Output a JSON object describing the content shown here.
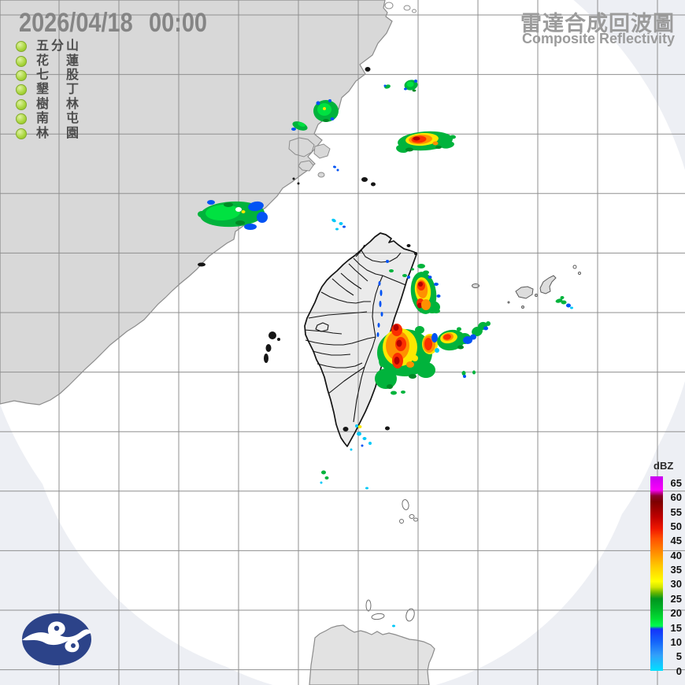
{
  "header": {
    "date": "2026/04/18",
    "time": "00:00",
    "title_zh": "雷達合成回波圖",
    "title_en": "Composite Reflectivity"
  },
  "stations": [
    {
      "name": "五分山",
      "chars": [
        "五",
        "分",
        "山"
      ]
    },
    {
      "name": "花蓮",
      "chars": [
        "花",
        "",
        "蓮"
      ]
    },
    {
      "name": "七股",
      "chars": [
        "七",
        "",
        "股"
      ]
    },
    {
      "name": "墾丁",
      "chars": [
        "墾",
        "",
        "丁"
      ]
    },
    {
      "name": "樹林",
      "chars": [
        "樹",
        "",
        "林"
      ]
    },
    {
      "name": "南屯",
      "chars": [
        "南",
        "",
        "屯"
      ]
    },
    {
      "name": "林園",
      "chars": [
        "林",
        "",
        "園"
      ]
    }
  ],
  "station_dot_color": "#a6d438",
  "colorbar": {
    "label": "dBZ",
    "ticks": [
      65,
      60,
      55,
      50,
      45,
      40,
      35,
      30,
      25,
      20,
      15,
      10,
      5,
      0
    ],
    "gradient": [
      "#c800f0 0%",
      "#fa00fa 7%",
      "#8c0030 10%",
      "#7d0000 13%",
      "#c00000 21%",
      "#f01800 27%",
      "#ff5000 32%",
      "#ff8c00 39%",
      "#ffc800 46%",
      "#ffff00 54%",
      "#d2e600 57%",
      "#64b400 60%",
      "#00961e 63%",
      "#00b428 68%",
      "#00dc32 73%",
      "#00fa50 77%",
      "#1432fa 78.5%",
      "#1464fa 85%",
      "#32a0fa 92%",
      "#00e1ff 100%"
    ]
  },
  "map": {
    "background_out_of_range": "#edeff4",
    "background_in_range": "#ffffff",
    "mainland_fill": "#d8d8d8",
    "mainland_stroke": "#8c8c8c",
    "taiwan_fill": "#ebebeb",
    "taiwan_stroke": "#141414",
    "grid_color": "#8f8f8f",
    "logo_color": "#2c4389"
  },
  "echoes": {
    "palette": {
      "G": "#01b33c",
      "BG": "#00e141",
      "DG": "#008a26",
      "Y": "#fde800",
      "O": "#ff9000",
      "R": "#fb2e00",
      "DR": "#b40000",
      "B": "#0253f4",
      "C": "#02c8f8",
      "W": "#ffffff"
    },
    "blobs": [
      [
        492,
        110,
        4,
        2.5,
        -15,
        "G"
      ],
      [
        489,
        109,
        1.5,
        1.5,
        0,
        "B"
      ],
      [
        522,
        108,
        8.5,
        6.5,
        -10,
        "G"
      ],
      [
        521,
        107,
        4.5,
        3.5,
        0,
        "BG"
      ],
      [
        528,
        103,
        2,
        2,
        0,
        "B"
      ],
      [
        515,
        113,
        2,
        1.5,
        0,
        "B"
      ],
      [
        526,
        115,
        2.5,
        1.5,
        0,
        "DG"
      ],
      [
        540,
        179,
        35,
        12,
        -4,
        "G"
      ],
      [
        511,
        189,
        8,
        5,
        10,
        "G"
      ],
      [
        568,
        184,
        9,
        4.5,
        -8,
        "G"
      ],
      [
        575,
        174,
        4,
        2.5,
        0,
        "G"
      ],
      [
        536,
        177,
        21,
        8,
        -4,
        "Y"
      ],
      [
        534,
        177,
        15,
        6,
        -4,
        "O"
      ],
      [
        532,
        177,
        9.5,
        4.5,
        -4,
        "R"
      ],
      [
        529,
        176,
        4.5,
        2.5,
        0,
        "DR"
      ],
      [
        553,
        182,
        3.5,
        2.5,
        0,
        "O"
      ],
      [
        557,
        187,
        4,
        2,
        0,
        "DG"
      ],
      [
        520,
        190,
        5,
        2.5,
        0,
        "DG"
      ],
      [
        414,
        141,
        16,
        14,
        0,
        "G"
      ],
      [
        412,
        139,
        9,
        8,
        0,
        "BG"
      ],
      [
        404,
        131,
        2.5,
        2.5,
        0,
        "B"
      ],
      [
        422,
        151,
        2.5,
        2,
        0,
        "B"
      ],
      [
        419,
        128,
        2,
        2,
        0,
        "B"
      ],
      [
        414,
        153,
        4,
        2,
        0,
        "DG"
      ],
      [
        412,
        138,
        2,
        2,
        0,
        "Y"
      ],
      [
        381,
        160,
        10,
        5,
        20,
        "G"
      ],
      [
        373,
        164,
        3,
        2,
        0,
        "B"
      ],
      [
        383,
        158,
        5,
        2.5,
        20,
        "BG"
      ],
      [
        295,
        272,
        41,
        16,
        -3,
        "G"
      ],
      [
        283,
        270,
        22,
        10,
        -3,
        "BG"
      ],
      [
        256,
        272,
        5,
        4,
        0,
        "G"
      ],
      [
        325,
        262,
        10,
        6,
        -10,
        "B"
      ],
      [
        333,
        276,
        7,
        7,
        0,
        "B"
      ],
      [
        318,
        288,
        8,
        4,
        0,
        "B"
      ],
      [
        268,
        257,
        5,
        3,
        0,
        "B"
      ],
      [
        305,
        283,
        6,
        3,
        0,
        "DG"
      ],
      [
        290,
        260,
        6,
        3,
        0,
        "DG"
      ],
      [
        303,
        266,
        4,
        3,
        0,
        "W"
      ],
      [
        309,
        269,
        2.5,
        2,
        0,
        "Y"
      ],
      [
        424,
        280,
        3,
        2,
        30,
        "C"
      ],
      [
        433,
        284,
        2.5,
        2,
        0,
        "C"
      ],
      [
        428,
        291,
        2,
        1.5,
        0,
        "C"
      ],
      [
        437,
        288,
        2,
        1.5,
        0,
        "B"
      ],
      [
        425,
        212,
        2,
        1.5,
        20,
        "B"
      ],
      [
        429,
        216,
        1.5,
        1.5,
        0,
        "B"
      ],
      [
        538,
        372,
        16,
        27,
        -8,
        "G"
      ],
      [
        549,
        390,
        10,
        8,
        0,
        "G"
      ],
      [
        537,
        369,
        10,
        17,
        -8,
        "Y"
      ],
      [
        536,
        367,
        7,
        12,
        -8,
        "O"
      ],
      [
        535,
        363,
        5,
        6,
        0,
        "R"
      ],
      [
        534,
        361,
        3,
        3,
        0,
        "DR"
      ],
      [
        534,
        385,
        5,
        6,
        0,
        "R"
      ],
      [
        533,
        388,
        3,
        3.5,
        0,
        "DR"
      ],
      [
        541,
        387,
        6,
        7,
        0,
        "O"
      ],
      [
        535,
        338,
        5,
        3,
        0,
        "G"
      ],
      [
        541,
        346,
        4,
        2.5,
        0,
        "G"
      ],
      [
        546,
        352,
        2.5,
        2,
        0,
        "B"
      ],
      [
        554,
        361,
        3,
        2,
        0,
        "B"
      ],
      [
        557,
        376,
        2.5,
        2,
        0,
        "B"
      ],
      [
        554,
        395,
        5,
        3,
        0,
        "G"
      ],
      [
        519,
        352,
        2,
        2,
        0,
        "B"
      ],
      [
        514,
        350,
        3,
        2,
        0,
        "G"
      ],
      [
        524,
        342,
        2,
        1.5,
        0,
        "G"
      ],
      [
        482,
        360,
        1.5,
        3,
        0,
        "B"
      ],
      [
        484,
        372,
        1.5,
        4,
        0,
        "B"
      ],
      [
        483,
        386,
        1.5,
        4,
        0,
        "B"
      ],
      [
        485,
        399,
        1.5,
        3,
        0,
        "B"
      ],
      [
        497,
        344,
        3,
        2,
        0,
        "G"
      ],
      [
        492,
        332,
        2,
        2,
        0,
        "B"
      ],
      [
        481,
        413,
        1.5,
        3,
        0,
        "B"
      ],
      [
        480,
        425,
        1.5,
        3,
        0,
        "B"
      ],
      [
        514,
        448,
        35,
        30,
        0,
        "G"
      ],
      [
        490,
        481,
        14,
        13,
        0,
        "G"
      ],
      [
        541,
        470,
        12,
        10,
        0,
        "G"
      ],
      [
        485,
        458,
        4,
        8,
        0,
        "G"
      ],
      [
        533,
        419,
        6,
        5,
        0,
        "G"
      ],
      [
        508,
        441,
        22,
        24,
        0,
        "Y"
      ],
      [
        546,
        437,
        10,
        13,
        0,
        "Y"
      ],
      [
        527,
        455,
        4,
        4,
        0,
        "Y"
      ],
      [
        505,
        439,
        15,
        19,
        0,
        "O"
      ],
      [
        545,
        437,
        8,
        11,
        0,
        "O"
      ],
      [
        521,
        463,
        5,
        4,
        0,
        "O"
      ],
      [
        504,
        419,
        7,
        8,
        0,
        "R"
      ],
      [
        509,
        437,
        7,
        9,
        0,
        "R"
      ],
      [
        505,
        458,
        7,
        10,
        0,
        "R"
      ],
      [
        544,
        437,
        5,
        8,
        0,
        "R"
      ],
      [
        503,
        416,
        3.5,
        4,
        0,
        "DR"
      ],
      [
        507,
        436,
        3.5,
        4.5,
        0,
        "DR"
      ],
      [
        504,
        458,
        3.5,
        5,
        0,
        "DR"
      ],
      [
        552,
        429,
        4,
        6,
        0,
        "B"
      ],
      [
        555,
        445,
        3,
        3,
        0,
        "C"
      ],
      [
        524,
        478,
        5,
        3,
        0,
        "DG"
      ],
      [
        495,
        491,
        4,
        3,
        0,
        "DG"
      ],
      [
        500,
        499,
        4,
        2.5,
        0,
        "G"
      ],
      [
        512,
        498,
        3,
        2,
        0,
        "G"
      ],
      [
        573,
        432,
        18,
        13,
        -10,
        "G"
      ],
      [
        590,
        430,
        8,
        7,
        0,
        "G"
      ],
      [
        606,
        421,
        7,
        6,
        -20,
        "G"
      ],
      [
        613,
        414,
        6,
        5,
        -20,
        "G"
      ],
      [
        620,
        411,
        3,
        3,
        0,
        "G"
      ],
      [
        583,
        418,
        3,
        2.5,
        0,
        "G"
      ],
      [
        570,
        429,
        11,
        7,
        -10,
        "Y"
      ],
      [
        569,
        428,
        7,
        5,
        -10,
        "O"
      ],
      [
        568,
        428,
        5,
        3.5,
        -10,
        "R"
      ],
      [
        594,
        432,
        6,
        5,
        0,
        "B"
      ],
      [
        601,
        428,
        4,
        3.5,
        0,
        "B"
      ],
      [
        617,
        417,
        3,
        2.5,
        0,
        "B"
      ],
      [
        585,
        441,
        4,
        2.5,
        0,
        "DG"
      ],
      [
        589,
        474,
        2.5,
        3,
        0,
        "G"
      ],
      [
        590,
        478,
        2,
        2,
        0,
        "B"
      ],
      [
        602,
        473,
        2,
        2.5,
        0,
        "G"
      ],
      [
        710,
        382,
        4.5,
        2.5,
        -15,
        "G"
      ],
      [
        716,
        384,
        3.5,
        2.5,
        0,
        "G"
      ],
      [
        714,
        378,
        2.5,
        2,
        0,
        "G"
      ],
      [
        722,
        388,
        3,
        2.5,
        0,
        "B"
      ],
      [
        726,
        391,
        2,
        1.5,
        0,
        "C"
      ],
      [
        456,
        551,
        3,
        2.5,
        0,
        "C"
      ],
      [
        463,
        557,
        2.5,
        2,
        0,
        "C"
      ],
      [
        470,
        563,
        2,
        2,
        0,
        "C"
      ],
      [
        460,
        566,
        1.5,
        1.5,
        0,
        "B"
      ],
      [
        446,
        571,
        1.5,
        1.5,
        0,
        "C"
      ],
      [
        457,
        542,
        2.5,
        2,
        0,
        "Y"
      ],
      [
        453,
        541,
        2,
        2,
        0,
        "C"
      ],
      [
        411,
        600,
        3,
        2.5,
        0,
        "G"
      ],
      [
        415,
        607,
        2.5,
        2,
        0,
        "G"
      ],
      [
        408,
        613,
        1.5,
        1.5,
        0,
        "C"
      ],
      [
        466,
        620,
        2,
        1.5,
        0,
        "C"
      ],
      [
        500,
        795,
        2,
        1.5,
        0,
        "C"
      ]
    ]
  }
}
